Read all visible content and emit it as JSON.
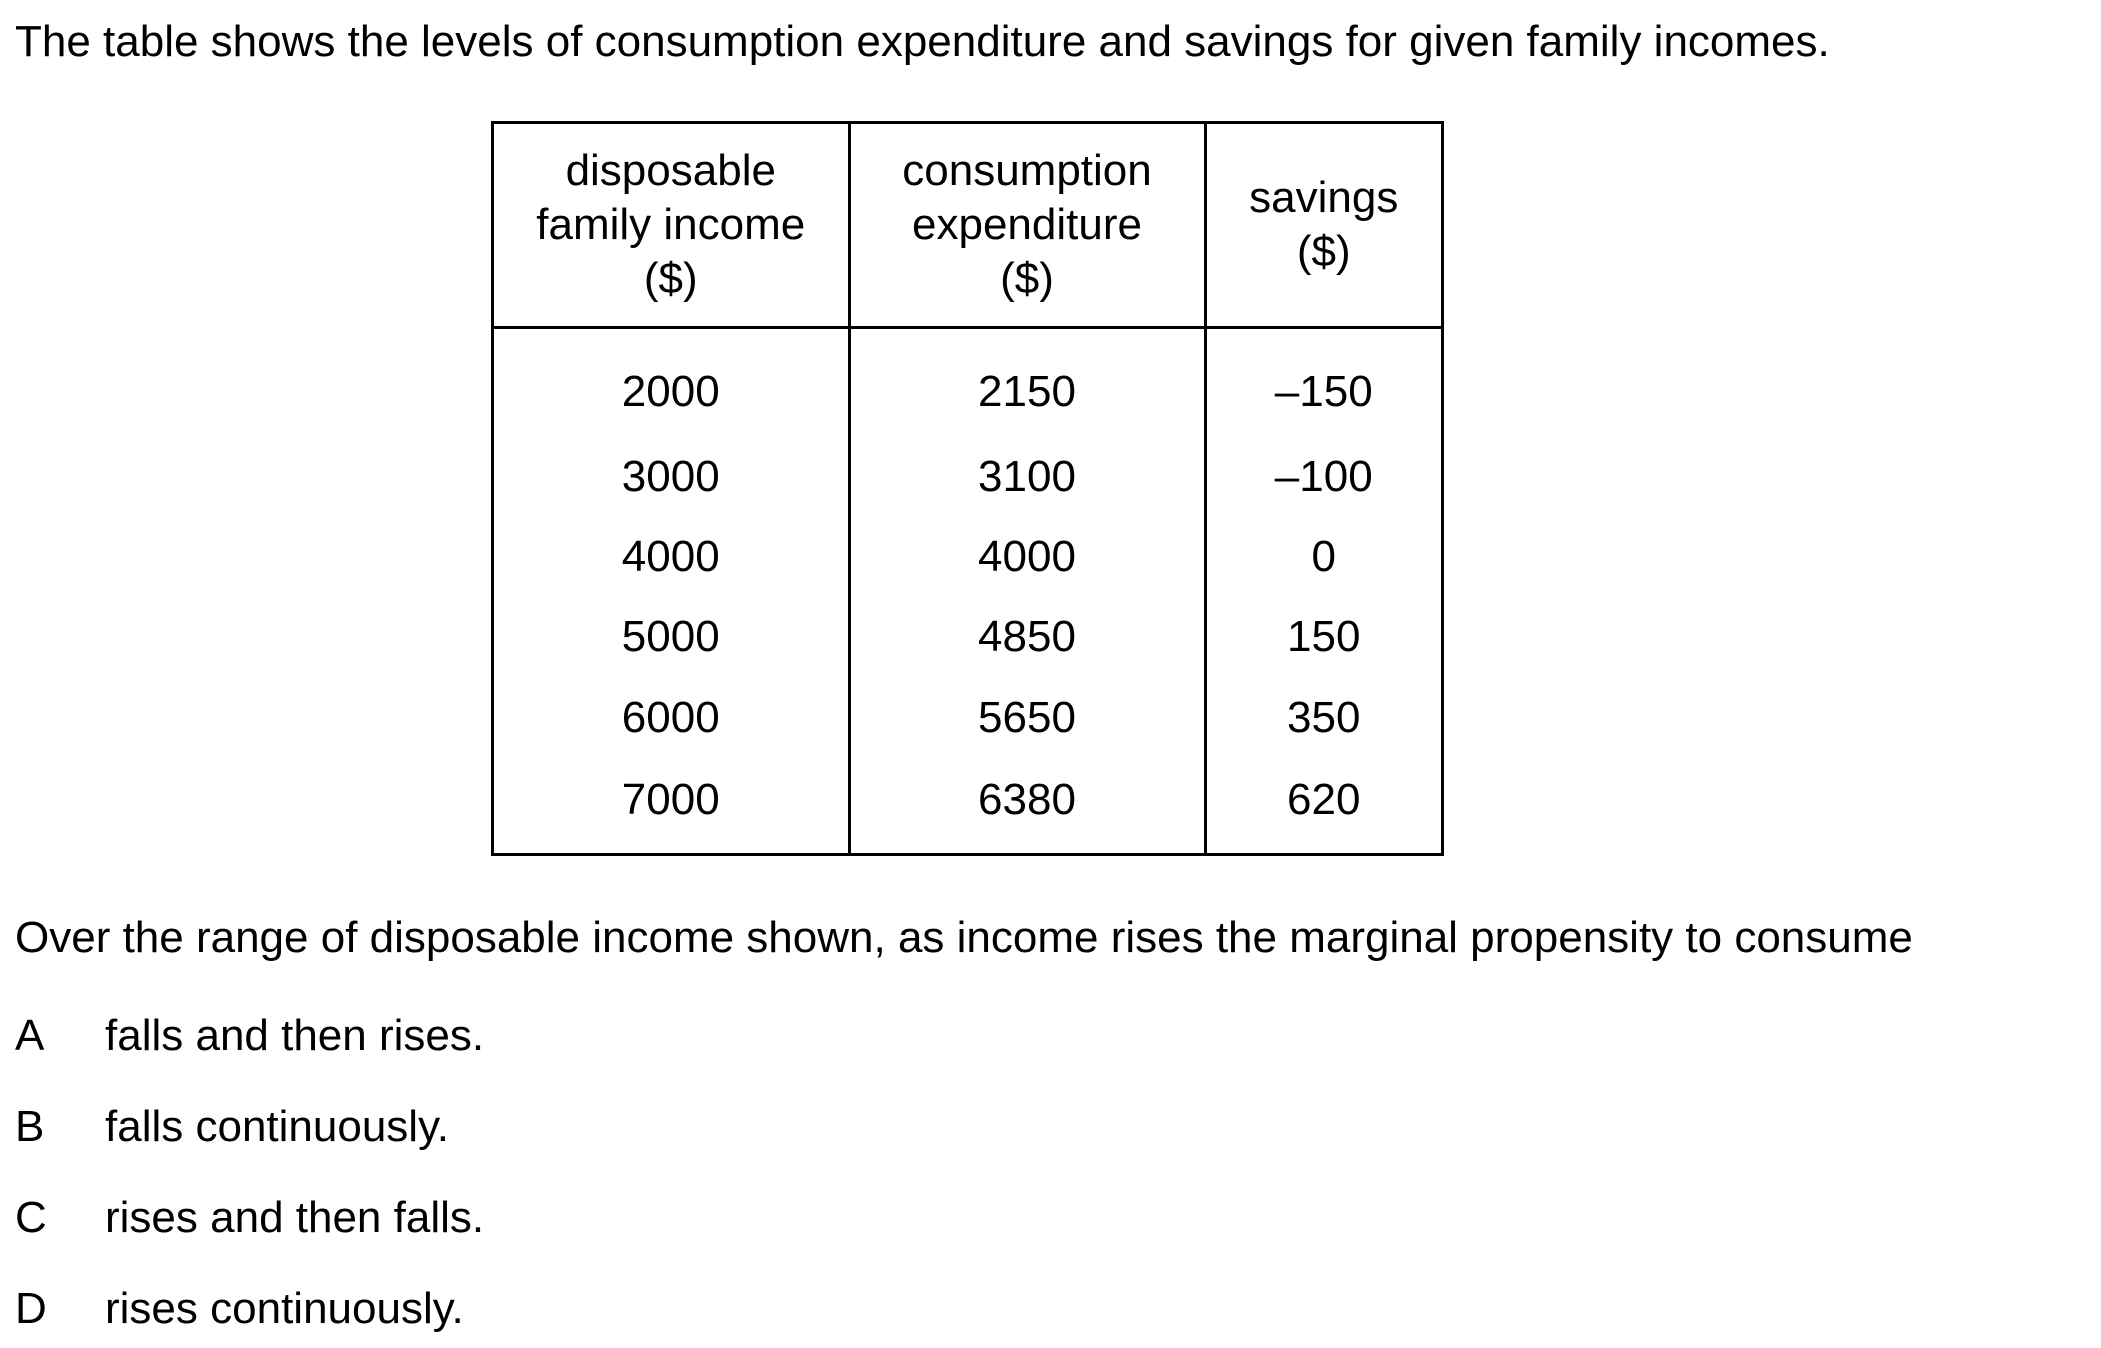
{
  "intro": "The table shows the levels of consumption expenditure and savings for given family incomes.",
  "table": {
    "headers": [
      [
        "disposable",
        "family income",
        "($)"
      ],
      [
        "consumption",
        "expenditure",
        "($)"
      ],
      [
        "savings",
        "($)"
      ]
    ],
    "rows": [
      [
        "2000",
        "2150",
        "–150"
      ],
      [
        "3000",
        "3100",
        "–100"
      ],
      [
        "4000",
        "4000",
        "0"
      ],
      [
        "5000",
        "4850",
        "150"
      ],
      [
        "6000",
        "5650",
        "350"
      ],
      [
        "7000",
        "6380",
        "620"
      ]
    ]
  },
  "question": "Over the range of disposable income shown, as income rises the marginal propensity to consume",
  "options": [
    {
      "letter": "A",
      "text": "falls and then rises."
    },
    {
      "letter": "B",
      "text": "falls continuously."
    },
    {
      "letter": "C",
      "text": "rises and then falls."
    },
    {
      "letter": "D",
      "text": "rises continuously."
    }
  ]
}
